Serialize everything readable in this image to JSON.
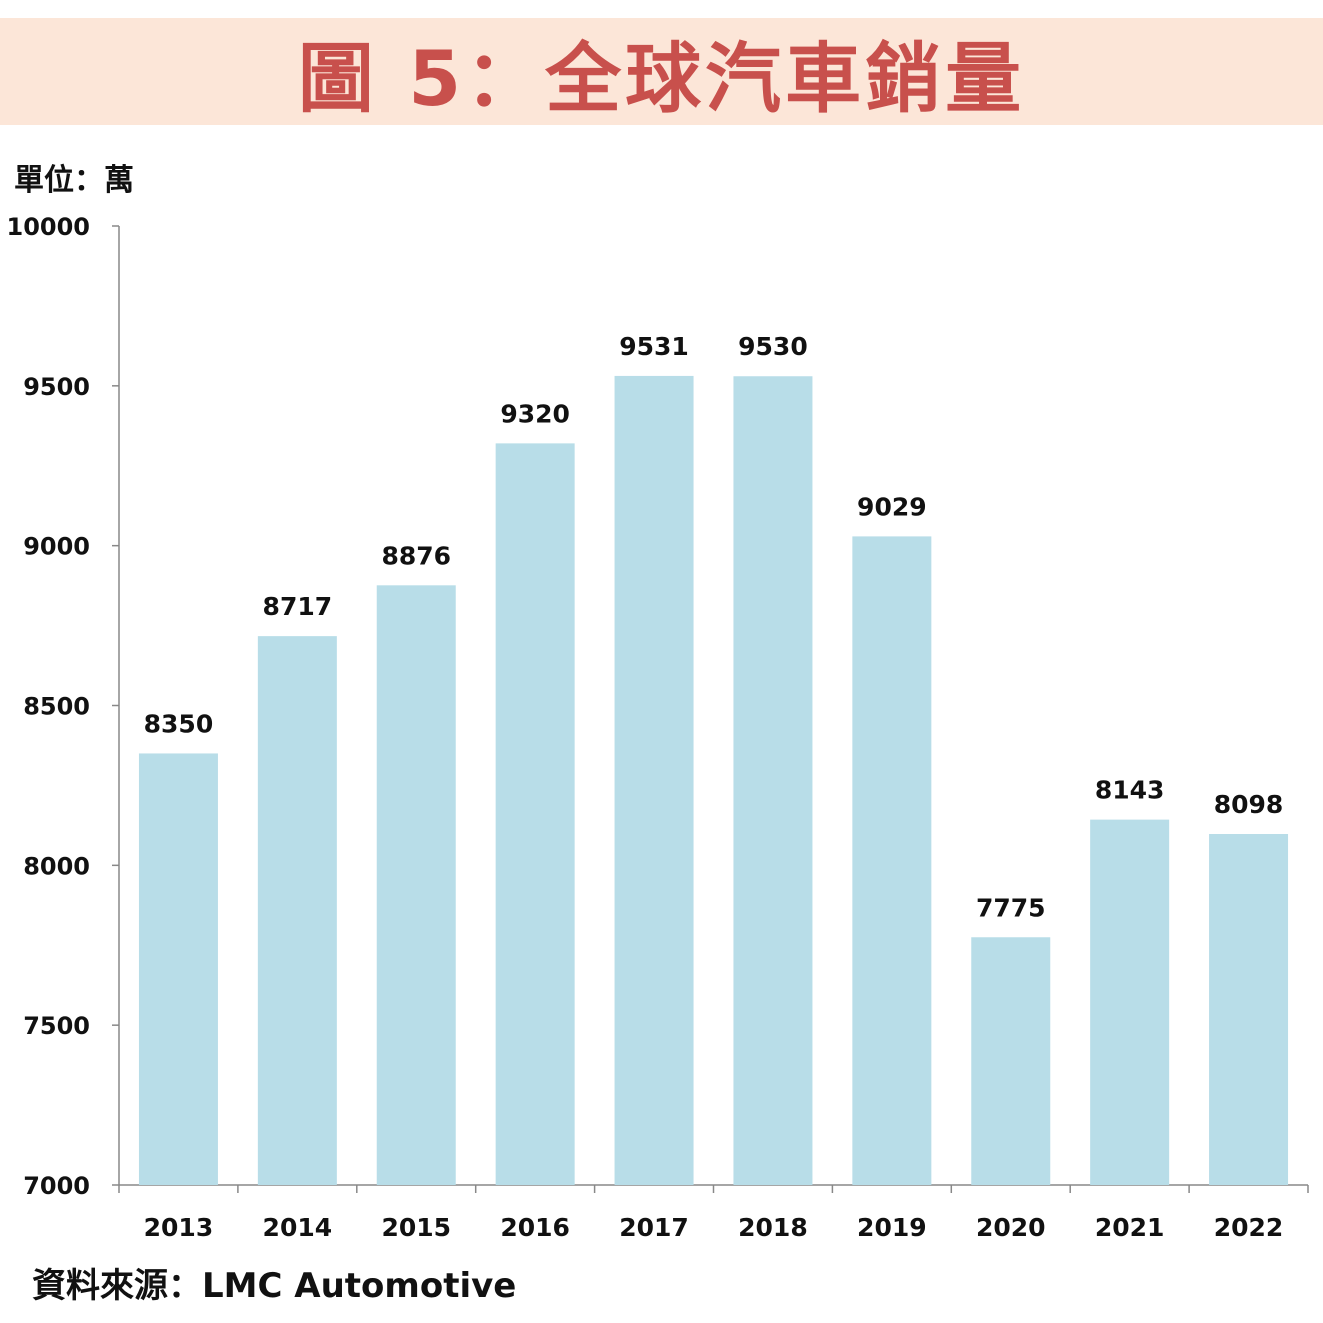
{
  "title": "圖 5：全球汽車銷量",
  "unit_label": "單位：萬",
  "source_label": "資料來源：LMC Automotive",
  "colors": {
    "title_band": "#fce6d8",
    "title_text": "#c8504c",
    "bar": "#b8dde8"
  },
  "chart_data": {
    "type": "bar",
    "categories": [
      "2013",
      "2014",
      "2015",
      "2016",
      "2017",
      "2018",
      "2019",
      "2020",
      "2021",
      "2022"
    ],
    "values": [
      8350,
      8717,
      8876,
      9320,
      9531,
      9530,
      9029,
      7775,
      8143,
      8098
    ],
    "ylim": [
      7000,
      10000
    ],
    "yticks": [
      7000,
      7500,
      8000,
      8500,
      9000,
      9500,
      10000
    ],
    "grid": false,
    "data_labels": true
  }
}
